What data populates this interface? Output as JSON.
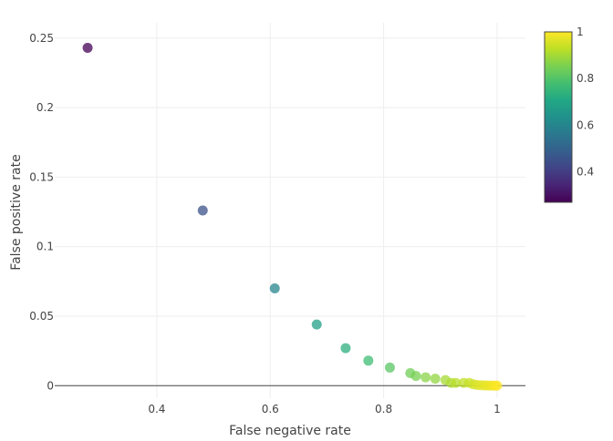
{
  "chart_data": {
    "type": "scatter",
    "title": "",
    "xlabel": "False negative rate",
    "ylabel": "False positive rate",
    "xlim": [
      0.22,
      1.05
    ],
    "ylim": [
      -0.009,
      0.261
    ],
    "x_ticks": [
      {
        "value": 0.4,
        "label": "0.4"
      },
      {
        "value": 0.6,
        "label": "0.6"
      },
      {
        "value": 0.8,
        "label": "0.8"
      },
      {
        "value": 1.0,
        "label": "1"
      }
    ],
    "y_ticks": [
      {
        "value": 0,
        "label": "0"
      },
      {
        "value": 0.05,
        "label": "0.05"
      },
      {
        "value": 0.1,
        "label": "0.1"
      },
      {
        "value": 0.15,
        "label": "0.15"
      },
      {
        "value": 0.2,
        "label": "0.2"
      },
      {
        "value": 0.25,
        "label": "0.25"
      }
    ],
    "grid": true,
    "colorscale": "viridis",
    "colorbar": {
      "range": [
        0.27,
        1.0
      ],
      "ticks": [
        {
          "value": 0.4,
          "label": "0.4"
        },
        {
          "value": 0.6,
          "label": "0.6"
        },
        {
          "value": 0.8,
          "label": "0.8"
        },
        {
          "value": 1.0,
          "label": "1"
        }
      ],
      "placement": "right"
    },
    "points": [
      {
        "x": 0.278,
        "y": 0.243,
        "c": 0.27
      },
      {
        "x": 0.481,
        "y": 0.126,
        "c": 0.45
      },
      {
        "x": 0.608,
        "y": 0.07,
        "c": 0.6
      },
      {
        "x": 0.682,
        "y": 0.044,
        "c": 0.68
      },
      {
        "x": 0.733,
        "y": 0.027,
        "c": 0.73
      },
      {
        "x": 0.773,
        "y": 0.018,
        "c": 0.77
      },
      {
        "x": 0.811,
        "y": 0.013,
        "c": 0.81
      },
      {
        "x": 0.847,
        "y": 0.009,
        "c": 0.84
      },
      {
        "x": 0.857,
        "y": 0.007,
        "c": 0.85
      },
      {
        "x": 0.874,
        "y": 0.006,
        "c": 0.87
      },
      {
        "x": 0.891,
        "y": 0.005,
        "c": 0.88
      },
      {
        "x": 0.909,
        "y": 0.004,
        "c": 0.9
      },
      {
        "x": 0.919,
        "y": 0.002,
        "c": 0.91
      },
      {
        "x": 0.927,
        "y": 0.002,
        "c": 0.92
      },
      {
        "x": 0.941,
        "y": 0.002,
        "c": 0.93
      },
      {
        "x": 0.951,
        "y": 0.002,
        "c": 0.94
      },
      {
        "x": 0.958,
        "y": 0.001,
        "c": 0.95
      },
      {
        "x": 0.965,
        "y": 0.0005,
        "c": 0.96
      },
      {
        "x": 0.972,
        "y": 0.0003,
        "c": 0.97
      },
      {
        "x": 0.978,
        "y": 0.0002,
        "c": 0.97
      },
      {
        "x": 0.983,
        "y": 0.0001,
        "c": 0.98
      },
      {
        "x": 0.988,
        "y": 0.0001,
        "c": 0.98
      },
      {
        "x": 0.993,
        "y": 0.0,
        "c": 0.99
      },
      {
        "x": 0.997,
        "y": 0.0,
        "c": 0.99
      },
      {
        "x": 1.0,
        "y": 0.0,
        "c": 1.0
      }
    ]
  }
}
